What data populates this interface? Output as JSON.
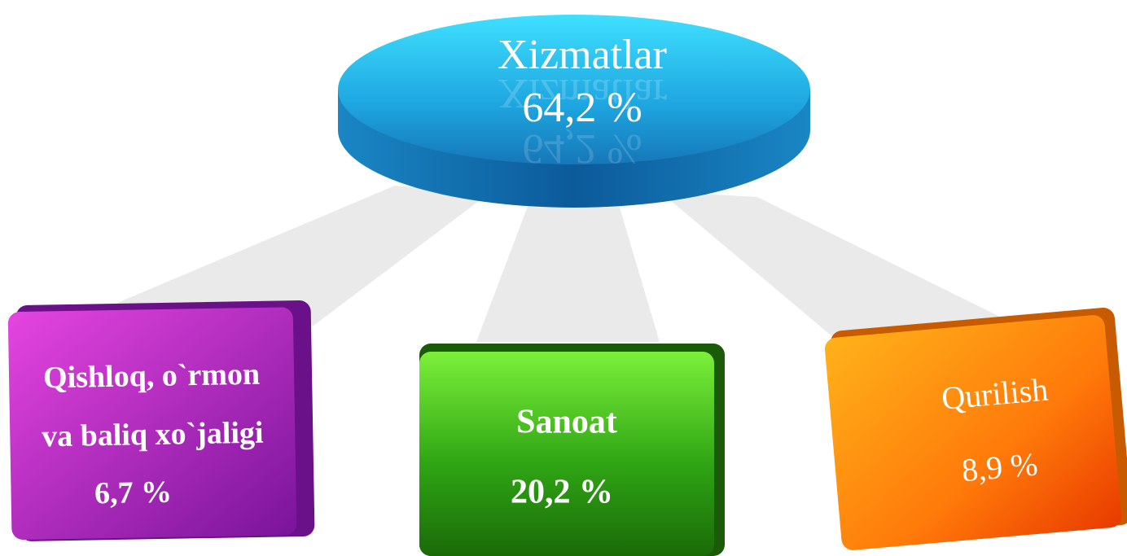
{
  "top": {
    "label": "Xizmatlar",
    "value": "64,2 %"
  },
  "nodes": [
    {
      "label_lines": [
        "Qishloq, o`rmon",
        "va baliq xo`jaligi"
      ],
      "value": "6,7 %"
    },
    {
      "label": "Sanoat",
      "value": "20,2 %"
    },
    {
      "label": "Qurilish",
      "value": "8,9 %"
    }
  ]
}
